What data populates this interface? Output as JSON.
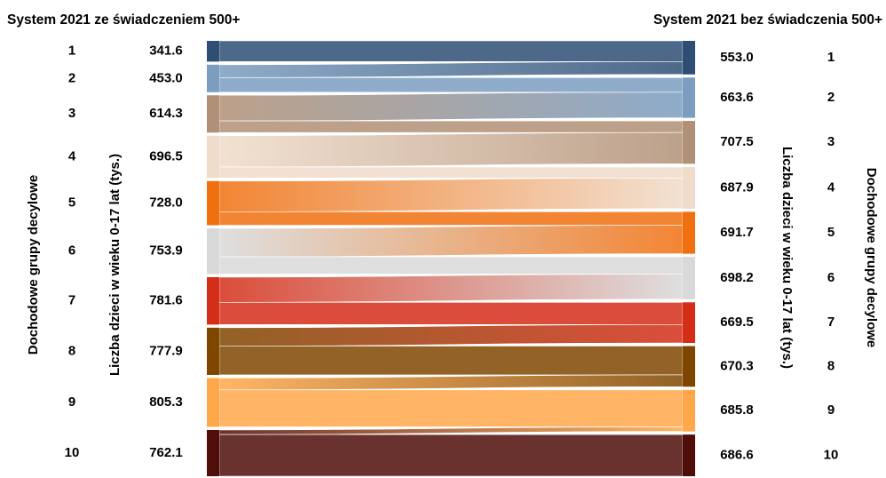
{
  "left": {
    "title": "System 2021 ze świadczeniem 500+",
    "decile_axis_label": "Dochodowe grupy decylowe",
    "value_axis_label": "Liczba dzieci w wieku 0-17 lat (tys.)"
  },
  "right": {
    "title": "System 2021 bez świadczenia 500+",
    "decile_axis_label": "Dochodowe grupy decylowe",
    "value_axis_label": "Liczba dzieci w wieku 0-17 lat (tys.)"
  },
  "chart_data": {
    "type": "sankey",
    "units": "tys.",
    "left_nodes": [
      {
        "decile": "1",
        "value": "341.6",
        "color": "#2f4e74"
      },
      {
        "decile": "2",
        "value": "453.0",
        "color": "#7b9dc0"
      },
      {
        "decile": "3",
        "value": "614.3",
        "color": "#b09076"
      },
      {
        "decile": "4",
        "value": "696.5",
        "color": "#f0dcca"
      },
      {
        "decile": "5",
        "value": "728.0",
        "color": "#f07010"
      },
      {
        "decile": "6",
        "value": "753.9",
        "color": "#d9d9d9"
      },
      {
        "decile": "7",
        "value": "781.6",
        "color": "#d42e18"
      },
      {
        "decile": "8",
        "value": "777.9",
        "color": "#7f4600"
      },
      {
        "decile": "9",
        "value": "805.3",
        "color": "#ffa84a"
      },
      {
        "decile": "10",
        "value": "762.1",
        "color": "#4f0e0a"
      }
    ],
    "right_nodes": [
      {
        "decile": "1",
        "value": "553.0"
      },
      {
        "decile": "2",
        "value": "663.6"
      },
      {
        "decile": "3",
        "value": "707.5"
      },
      {
        "decile": "4",
        "value": "687.9"
      },
      {
        "decile": "5",
        "value": "691.7"
      },
      {
        "decile": "6",
        "value": "698.2"
      },
      {
        "decile": "7",
        "value": "669.5"
      },
      {
        "decile": "8",
        "value": "670.3"
      },
      {
        "decile": "9",
        "value": "685.8"
      },
      {
        "decile": "10",
        "value": "686.6"
      }
    ],
    "flows": [
      {
        "from": 1,
        "to": 1,
        "value": 341.6
      },
      {
        "from": 2,
        "to": 1,
        "value": 211.4
      },
      {
        "from": 2,
        "to": 2,
        "value": 241.6
      },
      {
        "from": 3,
        "to": 2,
        "value": 422.0
      },
      {
        "from": 3,
        "to": 3,
        "value": 192.3
      },
      {
        "from": 4,
        "to": 3,
        "value": 515.2
      },
      {
        "from": 4,
        "to": 4,
        "value": 181.3
      },
      {
        "from": 5,
        "to": 4,
        "value": 506.6
      },
      {
        "from": 5,
        "to": 5,
        "value": 221.4
      },
      {
        "from": 6,
        "to": 5,
        "value": 470.3
      },
      {
        "from": 6,
        "to": 6,
        "value": 283.6
      },
      {
        "from": 7,
        "to": 6,
        "value": 414.6
      },
      {
        "from": 7,
        "to": 7,
        "value": 367.0
      },
      {
        "from": 8,
        "to": 7,
        "value": 302.5
      },
      {
        "from": 8,
        "to": 8,
        "value": 475.4
      },
      {
        "from": 9,
        "to": 8,
        "value": 194.9
      },
      {
        "from": 9,
        "to": 9,
        "value": 610.4
      },
      {
        "from": 10,
        "to": 9,
        "value": 75.4
      },
      {
        "from": 10,
        "to": 10,
        "value": 686.6
      }
    ]
  }
}
